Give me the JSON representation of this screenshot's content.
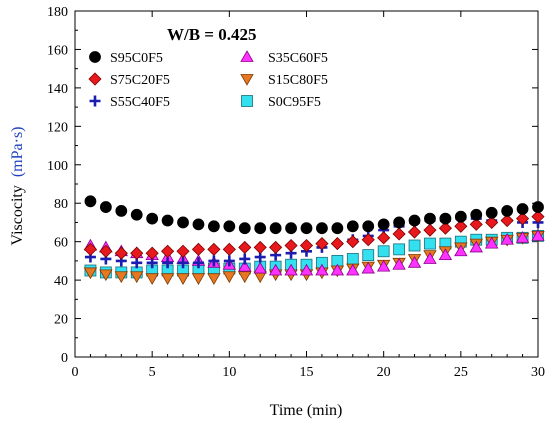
{
  "chart_data": {
    "type": "scatter",
    "title": "W/B = 0.425",
    "xlabel": "Time (min)",
    "ylabel_text": "Viscocity",
    "ylabel_unit": "(mPa·s)",
    "ylabel_unit_color": "#1f3fbf",
    "xlim": [
      0,
      30
    ],
    "ylim": [
      0,
      180
    ],
    "xticks": [
      0,
      5,
      10,
      15,
      20,
      25,
      30
    ],
    "yticks": [
      0,
      20,
      40,
      60,
      80,
      100,
      120,
      140,
      160,
      180
    ],
    "grid": false,
    "legend_position": "top-left",
    "x": [
      1,
      2,
      3,
      4,
      5,
      6,
      7,
      8,
      9,
      10,
      11,
      12,
      13,
      14,
      15,
      16,
      17,
      18,
      19,
      20,
      21,
      22,
      23,
      24,
      25,
      26,
      27,
      28,
      29,
      30
    ],
    "series": [
      {
        "name": "S95C0F5",
        "marker": "circle",
        "color": "#000000",
        "values": [
          81,
          78,
          76,
          74,
          72,
          71,
          70,
          69,
          68,
          68,
          67,
          67,
          67,
          67,
          67,
          67,
          67,
          68,
          68,
          69,
          70,
          71,
          72,
          72,
          73,
          74,
          75,
          76,
          77,
          78
        ]
      },
      {
        "name": "S75C20F5",
        "marker": "diamond",
        "color": "#e8191c",
        "values": [
          56,
          55,
          54,
          54,
          54,
          55,
          55,
          56,
          56,
          56,
          57,
          57,
          57,
          58,
          58,
          59,
          59,
          60,
          61,
          62,
          64,
          65,
          66,
          67,
          68,
          69,
          70,
          71,
          72,
          73
        ]
      },
      {
        "name": "S55C40F5",
        "marker": "plus",
        "color": "#1c1cb0",
        "values": [
          52,
          51,
          50,
          49,
          49,
          49,
          49,
          49,
          50,
          50,
          51,
          52,
          53,
          54,
          55,
          57,
          59,
          61,
          63,
          66,
          68,
          70,
          71,
          71,
          72,
          72,
          71,
          71,
          70,
          70
        ]
      },
      {
        "name": "S35C60F5",
        "marker": "triangle-up",
        "color": "#ff33ff",
        "values": [
          58,
          57,
          55,
          54,
          53,
          52,
          51,
          50,
          49,
          48,
          47,
          46,
          45,
          45,
          45,
          45,
          45,
          45,
          46,
          47,
          48,
          49,
          51,
          53,
          55,
          57,
          59,
          61,
          62,
          63
        ]
      },
      {
        "name": "S15C80F5",
        "marker": "triangle-down",
        "color": "#e87722",
        "values": [
          44,
          43,
          42,
          42,
          41,
          41,
          41,
          41,
          41,
          42,
          42,
          42,
          43,
          43,
          43,
          44,
          45,
          46,
          47,
          48,
          49,
          51,
          53,
          55,
          57,
          59,
          60,
          61,
          62,
          63
        ]
      },
      {
        "name": "S0C95F5",
        "marker": "square",
        "color": "#33e0f0",
        "values": [
          45,
          44,
          44,
          44,
          45,
          45,
          45,
          46,
          46,
          46,
          46,
          47,
          47,
          48,
          48,
          49,
          50,
          51,
          53,
          55,
          56,
          58,
          59,
          59,
          60,
          61,
          61,
          62,
          62,
          63
        ]
      }
    ]
  }
}
